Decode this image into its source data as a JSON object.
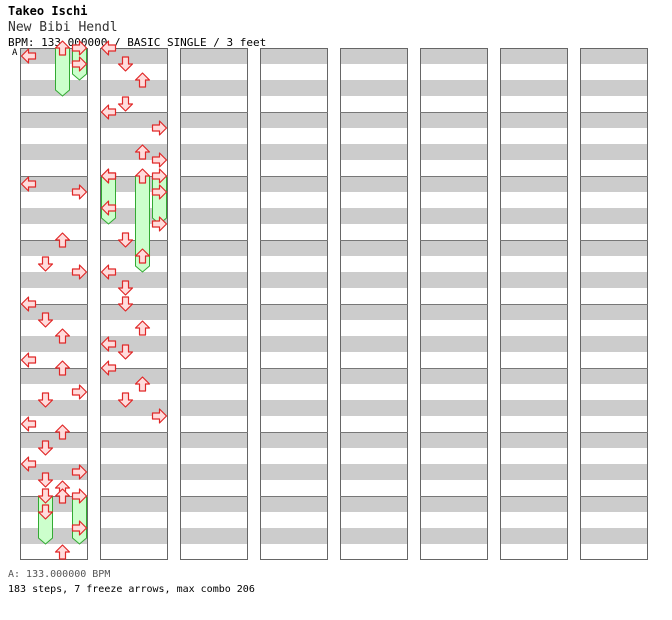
{
  "header": {
    "artist": "Takeo Ischi",
    "title": "New Bibi Hendl",
    "info": "BPM: 133.000000 / BASIC SINGLE / 3 feet",
    "bpm_marker": "A"
  },
  "footer": {
    "bpm_line": "A: 133.000000 BPM",
    "stats_line": "183 steps, 7 freeze arrows, max combo 206"
  },
  "colors": {
    "stripe": "#cccccc",
    "arrow_fill": "#ffdcdc",
    "arrow_stroke": "#e02828",
    "freeze_fill": "#ccffcc",
    "freeze_stroke": "#33aa33"
  },
  "chart_data": {
    "type": "step-chart",
    "mode": "BASIC SINGLE",
    "bpm": 133,
    "columns": 8,
    "measures_per_column": 8,
    "lanes": [
      "left",
      "down",
      "up",
      "right"
    ],
    "time_unit": "beat (16th-note steps, 4 beats per measure)",
    "arrows": [
      {
        "beat": 0.5,
        "lane": "left"
      },
      {
        "beat": 1.0,
        "lane": "right"
      },
      {
        "beat": 8.5,
        "lane": "left"
      },
      {
        "beat": 9.0,
        "lane": "right"
      },
      {
        "beat": 12.0,
        "lane": "up"
      },
      {
        "beat": 13.5,
        "lane": "down"
      },
      {
        "beat": 14.0,
        "lane": "right"
      },
      {
        "beat": 16.0,
        "lane": "left"
      },
      {
        "beat": 17.0,
        "lane": "down"
      },
      {
        "beat": 18.0,
        "lane": "up"
      },
      {
        "beat": 19.5,
        "lane": "left"
      },
      {
        "beat": 20.0,
        "lane": "up"
      },
      {
        "beat": 21.5,
        "lane": "right"
      },
      {
        "beat": 22.0,
        "lane": "down"
      },
      {
        "beat": 23.5,
        "lane": "left"
      },
      {
        "beat": 24.0,
        "lane": "up"
      },
      {
        "beat": 25.0,
        "lane": "down"
      },
      {
        "beat": 26.0,
        "lane": "left"
      },
      {
        "beat": 26.5,
        "lane": "right"
      },
      {
        "beat": 27.0,
        "lane": "down"
      },
      {
        "beat": 27.5,
        "lane": "up"
      },
      {
        "beat": 28.0,
        "lane": "up"
      },
      {
        "beat": 29.0,
        "lane": "down"
      },
      {
        "beat": 30.0,
        "lane": "right"
      },
      {
        "beat": 31.5,
        "lane": "up"
      },
      {
        "beat": 32.0,
        "lane": "left"
      },
      {
        "beat": 33.0,
        "lane": "down"
      },
      {
        "beat": 34.0,
        "lane": "up"
      },
      {
        "beat": 35.5,
        "lane": "down"
      },
      {
        "beat": 36.0,
        "lane": "left"
      },
      {
        "beat": 37.0,
        "lane": "right"
      },
      {
        "beat": 38.5,
        "lane": "up"
      },
      {
        "beat": 39.0,
        "lane": "right"
      },
      {
        "beat": 40.0,
        "lane": "left"
      },
      {
        "beat": 41.0,
        "lane": "right"
      },
      {
        "beat": 42.0,
        "lane": "left"
      },
      {
        "beat": 43.0,
        "lane": "right"
      },
      {
        "beat": 44.0,
        "lane": "down"
      },
      {
        "beat": 45.0,
        "lane": "up"
      },
      {
        "beat": 46.0,
        "lane": "left"
      },
      {
        "beat": 47.0,
        "lane": "down"
      },
      {
        "beat": 48.0,
        "lane": "down"
      },
      {
        "beat": 49.5,
        "lane": "up"
      },
      {
        "beat": 50.5,
        "lane": "left"
      },
      {
        "beat": 51.0,
        "lane": "down"
      },
      {
        "beat": 52.0,
        "lane": "left"
      },
      {
        "beat": 53.0,
        "lane": "up"
      },
      {
        "beat": 54.0,
        "lane": "down"
      },
      {
        "beat": 55.0,
        "lane": "right"
      }
    ],
    "freeze_arrows": [
      {
        "start_beat": 0.0,
        "end_beat": 2.0,
        "lane": "right"
      },
      {
        "start_beat": 28.0,
        "end_beat": 31.0,
        "lane": "down"
      },
      {
        "start_beat": 28.0,
        "end_beat": 31.0,
        "lane": "right"
      },
      {
        "start_beat": 40.0,
        "end_beat": 43.0,
        "lane": "left"
      },
      {
        "start_beat": 40.0,
        "end_beat": 43.0,
        "lane": "right"
      },
      {
        "start_beat": 0.0,
        "end_beat": 3.0,
        "lane": "up"
      },
      {
        "start_beat": 40.0,
        "end_beat": 46.0,
        "lane": "up"
      }
    ]
  }
}
